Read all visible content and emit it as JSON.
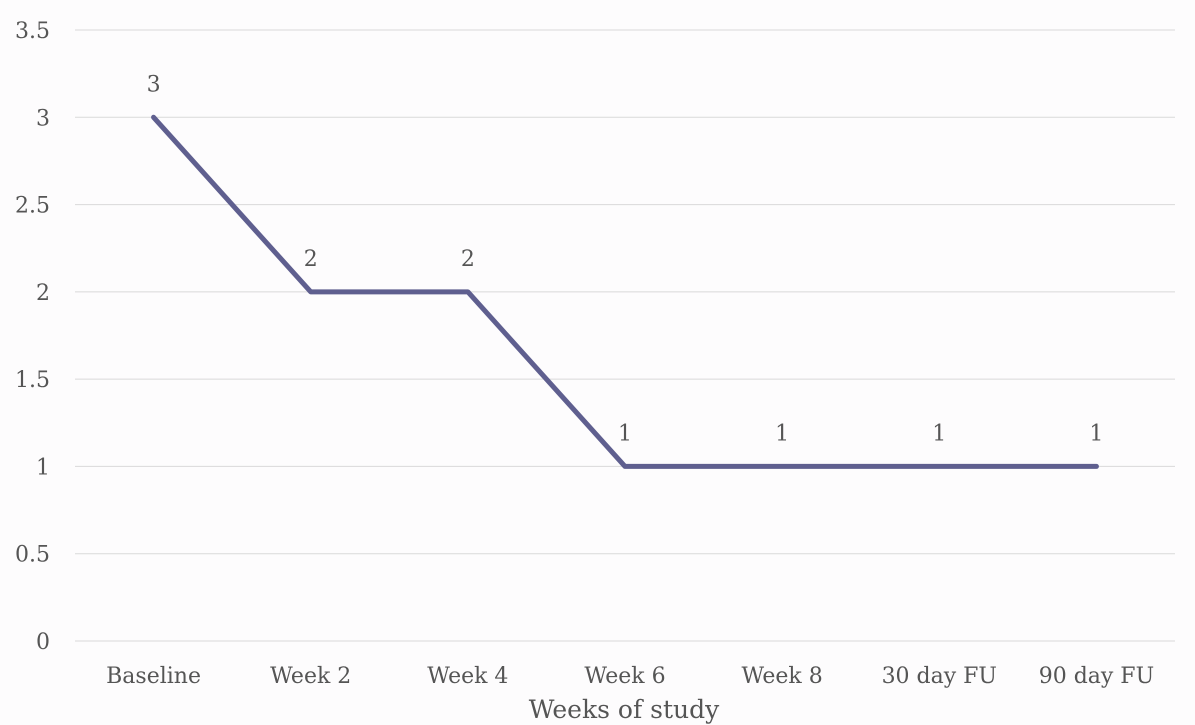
{
  "chart_data": {
    "type": "line",
    "title": "",
    "xlabel": "Weeks of study",
    "ylabel": "",
    "categories": [
      "Baseline",
      "Week 2",
      "Week 4",
      "Week 6",
      "Week 8",
      "30 day FU",
      "90 day FU"
    ],
    "series": [
      {
        "values": [
          3,
          2,
          2,
          1,
          1,
          1,
          1
        ],
        "color": "#5f5f8f"
      }
    ],
    "ylim": [
      0,
      3.5
    ],
    "yticks": [
      "0",
      "0.5",
      "1",
      "1.5",
      "2",
      "2.5",
      "3",
      "3.5"
    ],
    "grid": true,
    "data_labels": [
      "3",
      "2",
      "2",
      "1",
      "1",
      "1",
      "1"
    ]
  }
}
